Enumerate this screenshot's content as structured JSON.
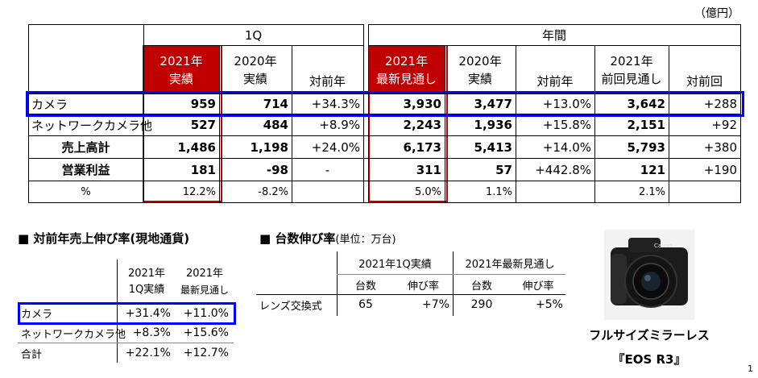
{
  "unit_label": "（億円）",
  "main_table": {
    "group_headers": {
      "q1": "1Q",
      "annual": "年間"
    },
    "col_headers": [
      {
        "line1": "2021年",
        "line2": "実績"
      },
      {
        "line1": "2020年",
        "line2": "実績"
      },
      {
        "line1": "",
        "line2": "対前年"
      },
      {
        "line1": "2021年",
        "line2": "最新見通し"
      },
      {
        "line1": "2020年",
        "line2": "実績"
      },
      {
        "line1": "",
        "line2": "対前年"
      },
      {
        "line1": "2021年",
        "line2": "前回見通し"
      },
      {
        "line1": "",
        "line2": "対前回"
      }
    ],
    "rows": [
      {
        "label": "カメラ",
        "cells": [
          "959",
          "714",
          "+34.3%",
          "3,930",
          "3,477",
          "+13.0%",
          "3,642",
          "+288"
        ]
      },
      {
        "label": "ネットワークカメラ他",
        "cells": [
          "527",
          "484",
          "+8.9%",
          "2,243",
          "1,936",
          "+15.8%",
          "2,151",
          "+92"
        ]
      },
      {
        "label": "売上高計",
        "cells": [
          "1,486",
          "1,198",
          "+24.0%",
          "6,173",
          "5,413",
          "+14.0%",
          "5,793",
          "+380"
        ]
      },
      {
        "label": "営業利益",
        "cells": [
          "181",
          "-98",
          "-",
          "311",
          "57",
          "+442.8%",
          "121",
          "+190"
        ]
      },
      {
        "label": "%",
        "cells": [
          "12.2%",
          "-8.2%",
          "",
          "5.0%",
          "1.1%",
          "",
          "2.1%",
          ""
        ]
      }
    ]
  },
  "growth_table": {
    "title": "■ 対前年売上伸び率(現地通貨)",
    "headers": [
      {
        "line1": "2021年",
        "line2": "1Q実績"
      },
      {
        "line1": "2021年",
        "line2": "最新見通し"
      }
    ],
    "rows": [
      {
        "label": "カメラ",
        "cells": [
          "+31.4%",
          "+11.0%"
        ]
      },
      {
        "label": "ネットワークカメラ他",
        "cells": [
          "+8.3%",
          "+15.6%"
        ]
      },
      {
        "label": "合計",
        "cells": [
          "+22.1%",
          "+12.7%"
        ]
      }
    ]
  },
  "units_table": {
    "title": "■ 台数伸び率",
    "title_note": "(単位：万台)",
    "group_headers": [
      "2021年1Q実績",
      "2021年最新見通し"
    ],
    "sub_headers": [
      "台数",
      "伸び率",
      "台数",
      "伸び率"
    ],
    "rows": [
      {
        "label": "レンズ交換式",
        "cells": [
          "65",
          "+7%",
          "290",
          "+5%"
        ]
      }
    ]
  },
  "product": {
    "caption_line1": "フルサイズミラーレス",
    "caption_line2": "『EOS R3』",
    "logo_text": "Canon"
  },
  "page_number": "1",
  "colors": {
    "highlight_red": "#c00000",
    "frame_blue": "#0000ff"
  }
}
